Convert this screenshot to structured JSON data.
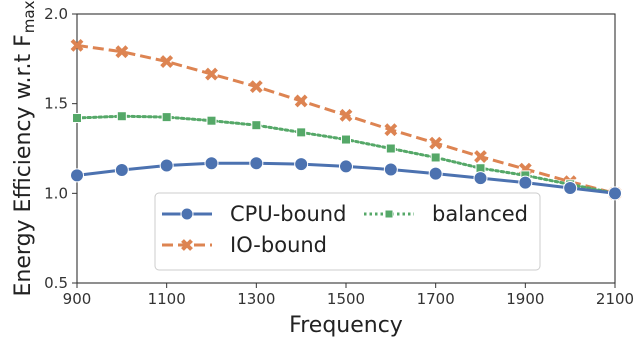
{
  "chart_data": {
    "type": "line",
    "x": [
      900,
      1000,
      1100,
      1200,
      1300,
      1400,
      1500,
      1600,
      1700,
      1800,
      1900,
      2000,
      2100
    ],
    "series": [
      {
        "name": "CPU-bound",
        "color": "#4c72b0",
        "marker": "circle",
        "line_style": "solid",
        "values": [
          1.1,
          1.13,
          1.155,
          1.168,
          1.168,
          1.163,
          1.15,
          1.133,
          1.11,
          1.085,
          1.06,
          1.03,
          1.0
        ]
      },
      {
        "name": "balanced",
        "color": "#55a868",
        "marker": "square",
        "line_style": "dotted",
        "values": [
          1.42,
          1.43,
          1.425,
          1.405,
          1.38,
          1.34,
          1.3,
          1.25,
          1.2,
          1.14,
          1.1,
          1.05,
          1.0
        ]
      },
      {
        "name": "IO-bound",
        "color": "#dd8452",
        "marker": "x",
        "line_style": "dashed",
        "values": [
          1.825,
          1.79,
          1.735,
          1.665,
          1.595,
          1.515,
          1.435,
          1.355,
          1.28,
          1.205,
          1.135,
          1.065,
          1.0
        ]
      }
    ],
    "title": "",
    "xlabel": "Frequency",
    "ylabel": "Energy Efficiency w.r.t F",
    "ylabel_subscript": "max",
    "xlim": [
      900,
      2100
    ],
    "ylim": [
      0.5,
      2.0
    ],
    "x_ticks": [
      "900",
      "1100",
      "1300",
      "1500",
      "1700",
      "1900",
      "2100"
    ],
    "y_ticks": [
      "0.5",
      "1.0",
      "1.5",
      "2.0"
    ],
    "grid": false,
    "legend_position": "bottom-center"
  }
}
